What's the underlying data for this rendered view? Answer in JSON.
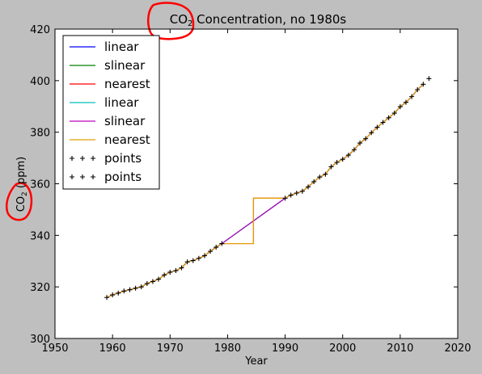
{
  "chart_data": {
    "type": "line",
    "title_main": "CO",
    "title_sub": "2",
    "title_rest": " Concentration, no 1980s",
    "xlabel": "Year",
    "ylabel_main": "CO",
    "ylabel_sub": "2",
    "ylabel_rest": " (ppm)",
    "xlim": [
      1950,
      2020
    ],
    "ylim": [
      300,
      420
    ],
    "xticks": [
      "1950",
      "1960",
      "1970",
      "1980",
      "1990",
      "2000",
      "2010",
      "2020"
    ],
    "yticks": [
      "300",
      "320",
      "340",
      "360",
      "380",
      "400",
      "420"
    ],
    "legend_position": "upper-left",
    "grid": false,
    "series": [
      {
        "name": "linear",
        "color": "#0000ff",
        "kind": "line"
      },
      {
        "name": "slinear",
        "color": "#008000",
        "kind": "line"
      },
      {
        "name": "nearest",
        "color": "#ff0000",
        "kind": "line"
      },
      {
        "name": "linear",
        "color": "#00bfbf",
        "kind": "line"
      },
      {
        "name": "slinear",
        "color": "#bf00bf",
        "kind": "line"
      },
      {
        "name": "nearest",
        "color": "#e0a000",
        "kind": "line"
      },
      {
        "name": "points",
        "color": "#000000",
        "kind": "marker"
      },
      {
        "name": "points",
        "color": "#000000",
        "kind": "marker"
      }
    ],
    "points": {
      "x": [
        1959,
        1960,
        1961,
        1962,
        1963,
        1964,
        1965,
        1966,
        1967,
        1968,
        1969,
        1970,
        1971,
        1972,
        1973,
        1974,
        1975,
        1976,
        1977,
        1978,
        1979,
        1990,
        1991,
        1992,
        1993,
        1994,
        1995,
        1996,
        1997,
        1998,
        1999,
        2000,
        2001,
        2002,
        2003,
        2004,
        2005,
        2006,
        2007,
        2008,
        2009,
        2010,
        2011,
        2012,
        2013,
        2014,
        2015
      ],
      "y": [
        315.9,
        316.9,
        317.6,
        318.4,
        318.9,
        319.5,
        320.0,
        321.3,
        322.1,
        323.0,
        324.6,
        325.7,
        326.3,
        327.4,
        329.7,
        330.2,
        331.1,
        332.1,
        333.8,
        335.4,
        336.8,
        354.4,
        355.6,
        356.4,
        357.1,
        358.8,
        360.8,
        362.6,
        363.7,
        366.6,
        368.3,
        369.5,
        371.1,
        373.2,
        375.8,
        377.5,
        379.8,
        381.9,
        383.8,
        385.6,
        387.4,
        389.9,
        391.6,
        393.8,
        396.5,
        398.6,
        400.8
      ]
    },
    "series_points": {
      "x": [
        1959,
        1960,
        1961,
        1962,
        1963,
        1964,
        1965,
        1966,
        1967,
        1968,
        1969,
        1970,
        1971,
        1972,
        1973,
        1974,
        1975,
        1976,
        1977,
        1978,
        1979,
        1990,
        1991,
        1992,
        1993,
        1994,
        1995,
        1996,
        1997,
        1998,
        1999,
        2000,
        2001,
        2002,
        2003,
        2004,
        2005,
        2006,
        2007,
        2008,
        2009,
        2010,
        2011,
        2012,
        2013,
        2014
      ],
      "y": [
        315.9,
        316.9,
        317.6,
        318.4,
        318.9,
        319.5,
        320.0,
        321.3,
        322.1,
        323.0,
        324.6,
        325.7,
        326.3,
        327.4,
        329.7,
        330.2,
        331.1,
        332.1,
        333.8,
        335.4,
        336.8,
        354.4,
        355.6,
        356.4,
        357.1,
        358.8,
        360.8,
        362.6,
        363.7,
        366.6,
        368.3,
        369.5,
        371.1,
        373.2,
        375.8,
        377.5,
        379.8,
        381.9,
        383.8,
        385.6,
        387.4,
        389.9,
        391.6,
        393.8,
        396.5,
        398.6
      ]
    }
  }
}
